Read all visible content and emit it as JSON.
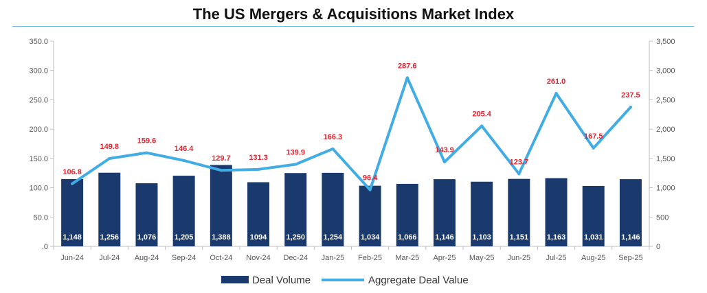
{
  "chart_data": {
    "type": "bar+line",
    "title": "The US Mergers & Acquisitions Market Index",
    "categories": [
      "Jun-24",
      "Jul-24",
      "Aug-24",
      "Sep-24",
      "Oct-24",
      "Nov-24",
      "Dec-24",
      "Jan-25",
      "Feb-25",
      "Mar-25",
      "Apr-25",
      "May-25",
      "Jun-25",
      "Jul-25",
      "Aug-25",
      "Sep-25"
    ],
    "series": [
      {
        "name": "Deal Volume",
        "type": "bar",
        "axis": "right",
        "color": "#1a3a6e",
        "values": [
          1148,
          1256,
          1076,
          1205,
          1388,
          1094,
          1250,
          1254,
          1034,
          1066,
          1146,
          1103,
          1151,
          1163,
          1031,
          1146
        ],
        "labels": [
          "1,148",
          "1,256",
          "1,076",
          "1,205",
          "1,388",
          "1094",
          "1,250",
          "1,254",
          "1,034",
          "1,066",
          "1,146",
          "1,103",
          "1,151",
          "1,163",
          "1,031",
          "1,146"
        ]
      },
      {
        "name": "Aggregate Deal Value",
        "type": "line",
        "axis": "left",
        "color": "#41ade4",
        "values": [
          106.8,
          149.8,
          159.6,
          146.4,
          129.7,
          131.3,
          139.9,
          166.3,
          96.4,
          287.6,
          143.9,
          205.4,
          123.7,
          261.0,
          167.5,
          237.5
        ],
        "labels": [
          "106.8",
          "149.8",
          "159.6",
          "146.4",
          "129.7",
          "131.3",
          "139.9",
          "166.3",
          "96.4",
          "287.6",
          "143.9",
          "205.4",
          "123.7",
          "261.0",
          "167.5",
          "237.5"
        ],
        "label_color": "#e8212e"
      }
    ],
    "y_left": {
      "ylim": [
        0,
        350
      ],
      "ticks": [
        ".0",
        "50.0",
        "100.0",
        "150.0",
        "200.0",
        "250.0",
        "300.0",
        "350.0"
      ]
    },
    "y_right": {
      "ylim": [
        0,
        3500
      ],
      "ticks": [
        "0",
        "500",
        "1,000",
        "1,500",
        "2,000",
        "2,500",
        "3,000",
        "3,500"
      ]
    },
    "grid": false,
    "legend_position": "bottom"
  }
}
